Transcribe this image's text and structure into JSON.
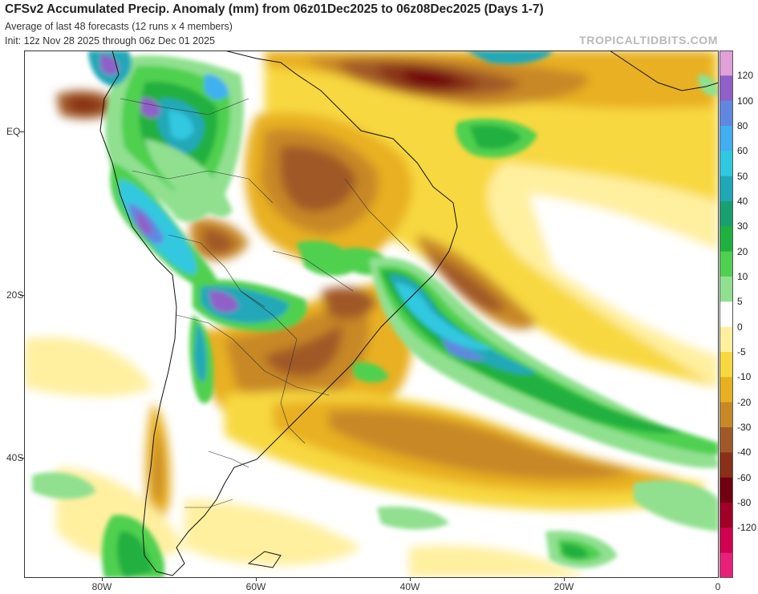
{
  "header": {
    "title": "CFSv2 Accumulated Precip. Anomaly (mm) from 06z01Dec2025 to 06z08Dec2025 (Days 1-7)",
    "subtitle1": "Average of last 48 forecasts (12 runs x 4 members)",
    "subtitle2": "Init: 12z Nov 28 2025 through 06z Dec 01 2025",
    "brand": "TROPICALTIDBITS.COM"
  },
  "axes": {
    "y_labels": [
      "EQ",
      "20S",
      "40S"
    ],
    "x_labels": [
      "80W",
      "60W",
      "40W",
      "20W",
      "0"
    ]
  },
  "colorbar": {
    "labels": [
      "120",
      "100",
      "80",
      "60",
      "50",
      "40",
      "30",
      "20",
      "10",
      "5",
      "0",
      "-5",
      "-10",
      "-20",
      "-30",
      "-40",
      "-60",
      "-80",
      "-120"
    ],
    "colors": [
      "#e0a0d8",
      "#9060c8",
      "#6088e0",
      "#40b0f0",
      "#30c8e0",
      "#20a8b8",
      "#18a070",
      "#20b040",
      "#50d050",
      "#90e090",
      "#ffffff",
      "#fff0a0",
      "#f8d840",
      "#e8b020",
      "#c88828",
      "#a05828",
      "#883018",
      "#700010",
      "#a00028",
      "#d00050",
      "#e8207a"
    ]
  },
  "map": {
    "extent": {
      "lon_min": -90,
      "lon_max": 0,
      "lat_min": -57,
      "lat_max": 10
    },
    "palette": {
      "dry_light": "#fff0a0",
      "dry1": "#f8d840",
      "dry2": "#e8b020",
      "dry3": "#c88828",
      "dry4": "#a05828",
      "dry5": "#883018",
      "dry6": "#700010",
      "wet1": "#90e090",
      "wet2": "#50d050",
      "wet3": "#20b040",
      "wet4": "#18a070",
      "wet5": "#20a8b8",
      "wet6": "#30c8e0",
      "wet7": "#40b0f0",
      "wet8": "#6088e0",
      "wet9": "#9060c8"
    }
  }
}
